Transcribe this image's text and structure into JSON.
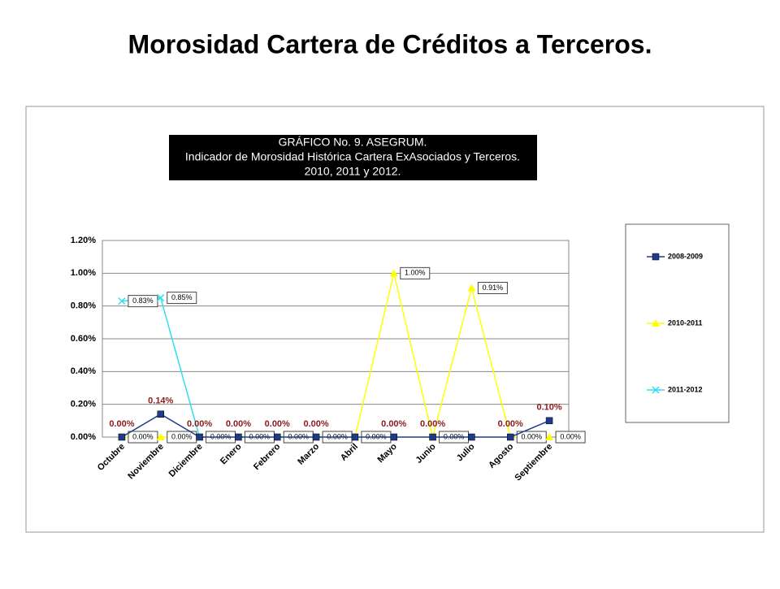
{
  "slide_title": "Morosidad Cartera de Créditos a Terceros.",
  "chart_data": {
    "type": "line",
    "title": [
      "GRÁFICO No. 9. ASEGRUM.",
      "Indicador de Morosidad Histórica Cartera ExAsociados y Terceros.",
      "2010, 2011 y 2012."
    ],
    "categories": [
      "Octubre",
      "Noviembre",
      "Diciembre",
      "Enero",
      "Febrero",
      "Marzo",
      "Abril",
      "Mayo",
      "Junio",
      "Julio",
      "Agosto",
      "Septiembre"
    ],
    "ylim": [
      0,
      1.2
    ],
    "yticks": [
      {
        "value": 0,
        "label": "0.00%"
      },
      {
        "value": 0.2,
        "label": "0.20%"
      },
      {
        "value": 0.4,
        "label": "0.40%"
      },
      {
        "value": 0.6,
        "label": "0.60%"
      },
      {
        "value": 0.8,
        "label": "0.80%"
      },
      {
        "value": 1.0,
        "label": "1.00%"
      },
      {
        "value": 1.2,
        "label": "1.20%"
      }
    ],
    "grid": true,
    "legend": "right",
    "series": [
      {
        "name": "2008-2009",
        "color": "#1f3a8a",
        "values": [
          0,
          0.14,
          0,
          0,
          0,
          0,
          0,
          0,
          0,
          0,
          0,
          0.1
        ],
        "value_labels": [
          "0.00%",
          "0.14%",
          "0.00%",
          "0.00%",
          "0.00%",
          "0.00%",
          null,
          "0.00%",
          "0.00%",
          null,
          "0.00%",
          "0.10%"
        ]
      },
      {
        "name": "2010-2011",
        "color": "#ffff00",
        "values": [
          0,
          0,
          0,
          0,
          0,
          0,
          0,
          1.0,
          0,
          0.91,
          0,
          0
        ],
        "value_labels": [
          "0.00%",
          "0.00%",
          "0.00%",
          "0.00%",
          "0.00%",
          "0.00%",
          "0.00%",
          "1.00%",
          "0.00%",
          "0.91%",
          "0.00%",
          "0.00%"
        ]
      },
      {
        "name": "2011-2012",
        "color": "#33ddee",
        "values": [
          0.83,
          0.85,
          0,
          0,
          0,
          0,
          0,
          null,
          null,
          null,
          null,
          null
        ],
        "value_labels": [
          "0.83%",
          "0.85%",
          null,
          null,
          null,
          null,
          null,
          null,
          null,
          null,
          null,
          null
        ]
      }
    ]
  }
}
